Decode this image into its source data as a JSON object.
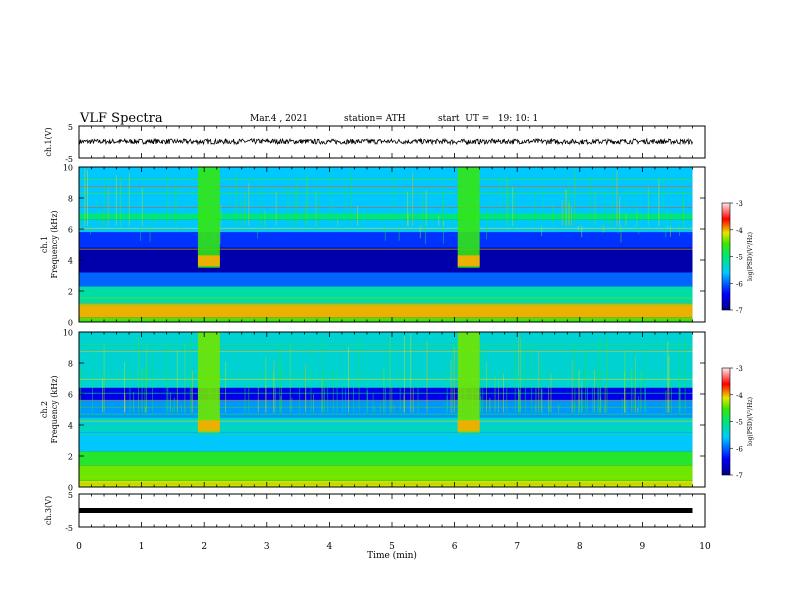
{
  "header": {
    "title": "VLF Spectra",
    "date": "Mar.4 , 2021",
    "station": "station= ATH",
    "start": "start  UT =   19: 10: 1"
  },
  "chart_data": [
    {
      "type": "line",
      "panel": "ch1-waveform",
      "ylabel": "ch.1(V)",
      "ylim": [
        -5,
        5
      ],
      "yticks": [
        "5",
        "-5"
      ],
      "xlim": [
        0,
        10
      ],
      "x": [
        0,
        1,
        2,
        3,
        4,
        5,
        6,
        7,
        8,
        9,
        9.8
      ],
      "values": [
        0.1,
        0.2,
        0.1,
        0.2,
        0.1,
        0.2,
        0.1,
        0.2,
        0.1,
        0.2,
        0.1
      ],
      "color": "#000000"
    },
    {
      "type": "heatmap",
      "panel": "ch1-spectrogram",
      "ylabel": "Frequency (kHz)",
      "channel_label": "ch.1",
      "ylim": [
        0,
        10
      ],
      "xlim": [
        0,
        10
      ],
      "yticks": [
        "0",
        "2",
        "4",
        "6",
        "8",
        "10"
      ],
      "data_xmax": 9.8,
      "bands": [
        {
          "f": [
            0.0,
            0.3
          ],
          "level": -4.6
        },
        {
          "f": [
            0.3,
            1.2
          ],
          "level": -4.0
        },
        {
          "f": [
            1.2,
            2.3
          ],
          "level": -5.2
        },
        {
          "f": [
            2.3,
            3.2
          ],
          "level": -6.0
        },
        {
          "f": [
            3.2,
            4.8
          ],
          "level": -6.8
        },
        {
          "f": [
            4.8,
            5.8
          ],
          "level": -6.2
        },
        {
          "f": [
            5.8,
            6.6
          ],
          "level": -5.6
        },
        {
          "f": [
            6.6,
            7.0
          ],
          "level": -5.0
        },
        {
          "f": [
            7.0,
            10.0
          ],
          "level": -5.6
        }
      ],
      "bursts": [
        {
          "t": [
            1.9,
            2.25
          ],
          "f": [
            3.5,
            10
          ],
          "level": -4.6
        },
        {
          "t": [
            6.05,
            6.4
          ],
          "f": [
            3.5,
            10
          ],
          "level": -4.6
        }
      ],
      "colorbar": {
        "label": "log(PSD)(V²/Hz)",
        "range": [
          -7,
          -3
        ],
        "ticks": [
          "-3",
          "-4",
          "-5",
          "-6",
          "-7"
        ]
      }
    },
    {
      "type": "heatmap",
      "panel": "ch2-spectrogram",
      "ylabel": "Frequency (kHz)",
      "channel_label": "ch.2",
      "ylim": [
        0,
        10
      ],
      "xlim": [
        0,
        10
      ],
      "yticks": [
        "0",
        "2",
        "4",
        "6",
        "8",
        "10"
      ],
      "data_xmax": 9.8,
      "bands": [
        {
          "f": [
            0.0,
            0.4
          ],
          "level": -4.2
        },
        {
          "f": [
            0.4,
            1.4
          ],
          "level": -4.4
        },
        {
          "f": [
            1.4,
            2.3
          ],
          "level": -4.7
        },
        {
          "f": [
            2.3,
            3.5
          ],
          "level": -5.6
        },
        {
          "f": [
            3.5,
            4.5
          ],
          "level": -5.4
        },
        {
          "f": [
            4.5,
            5.6
          ],
          "level": -5.8
        },
        {
          "f": [
            5.6,
            6.4
          ],
          "level": -6.5
        },
        {
          "f": [
            6.4,
            10.0
          ],
          "level": -5.4
        }
      ],
      "bursts": [
        {
          "t": [
            1.9,
            2.25
          ],
          "f": [
            3.5,
            10
          ],
          "level": -4.4
        },
        {
          "t": [
            6.05,
            6.4
          ],
          "f": [
            3.5,
            10
          ],
          "level": -4.4
        }
      ],
      "colorbar": {
        "label": "log(PSD)(V²/Hz)",
        "range": [
          -7,
          -3
        ],
        "ticks": [
          "-3",
          "-4",
          "-5",
          "-6",
          "-7"
        ]
      }
    },
    {
      "type": "line",
      "panel": "ch3-waveform",
      "ylabel": "ch.3(V)",
      "ylim": [
        -5,
        5
      ],
      "yticks": [
        "5",
        "-5"
      ],
      "xlim": [
        0,
        10
      ],
      "x": [
        0,
        9.8
      ],
      "values": [
        0,
        0
      ],
      "color": "#000000"
    }
  ],
  "xaxis": {
    "label": "Time (min)",
    "ticks": [
      "0",
      "1",
      "2",
      "3",
      "4",
      "5",
      "6",
      "7",
      "8",
      "9",
      "10"
    ],
    "range": [
      0,
      10
    ]
  }
}
